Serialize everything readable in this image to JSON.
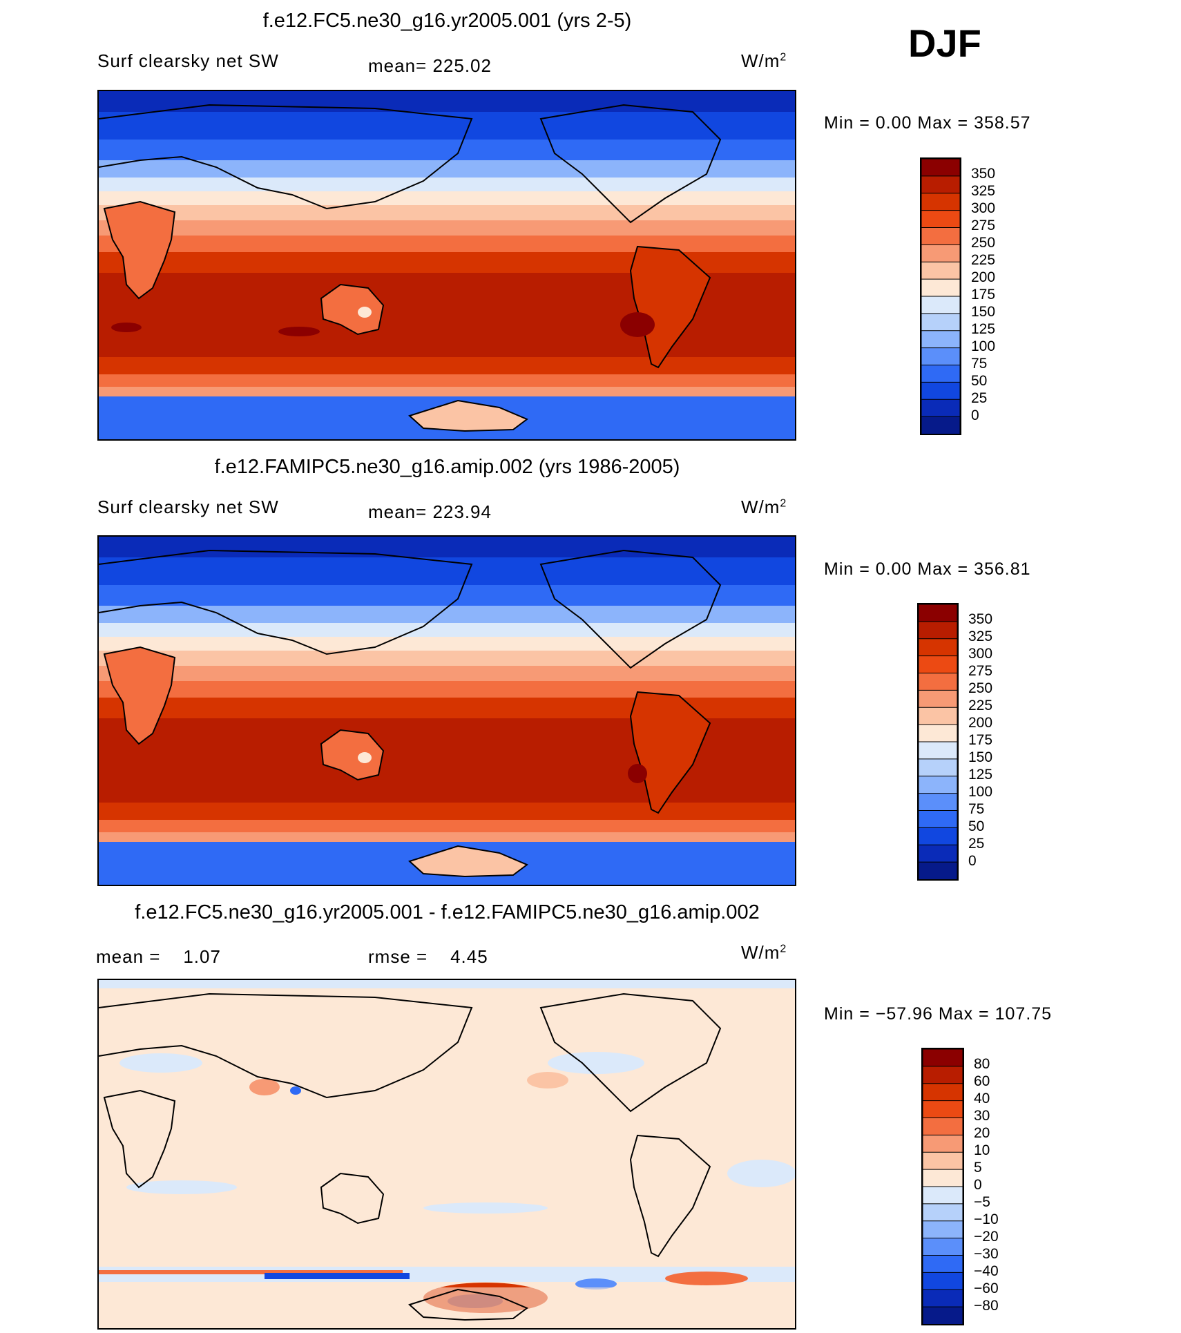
{
  "season": "DJF",
  "units_sup": "2",
  "panels": [
    {
      "title": "f.e12.FC5.ne30_g16.yr2005.001 (yrs 2-5)",
      "left_label": "Surf clearsky net SW",
      "mid_label": "mean= 225.02",
      "units": "W/m",
      "minmax": "Min =    0.00 Max = 358.57",
      "colorbar": {
        "labels": [
          "350",
          "325",
          "300",
          "275",
          "250",
          "225",
          "200",
          "175",
          "150",
          "125",
          "100",
          "75",
          "50",
          "25",
          "0"
        ],
        "colors": [
          "#8b0000",
          "#b81d00",
          "#d63400",
          "#ec4a13",
          "#f36e40",
          "#f79a75",
          "#fbc4a5",
          "#fde8d6",
          "#dbe9fa",
          "#b6d1fa",
          "#8cb4fb",
          "#5b8ffa",
          "#2f6af5",
          "#1147e0",
          "#0a2bb8",
          "#061a8a"
        ]
      },
      "chart_data": {
        "type": "contour-map",
        "field": "Surface clear-sky net shortwave flux",
        "mean": 225.02,
        "min": 0.0,
        "max": 358.57,
        "levels": [
          0,
          25,
          50,
          75,
          100,
          125,
          150,
          175,
          200,
          225,
          250,
          275,
          300,
          325,
          350
        ]
      }
    },
    {
      "title": "f.e12.FAMIPC5.ne30_g16.amip.002 (yrs 1986-2005)",
      "left_label": "Surf clearsky net SW",
      "mid_label": "mean= 223.94",
      "units": "W/m",
      "minmax": "Min =    0.00 Max = 356.81",
      "colorbar": {
        "labels": [
          "350",
          "325",
          "300",
          "275",
          "250",
          "225",
          "200",
          "175",
          "150",
          "125",
          "100",
          "75",
          "50",
          "25",
          "0"
        ],
        "colors": [
          "#8b0000",
          "#b81d00",
          "#d63400",
          "#ec4a13",
          "#f36e40",
          "#f79a75",
          "#fbc4a5",
          "#fde8d6",
          "#dbe9fa",
          "#b6d1fa",
          "#8cb4fb",
          "#5b8ffa",
          "#2f6af5",
          "#1147e0",
          "#0a2bb8",
          "#061a8a"
        ]
      },
      "chart_data": {
        "type": "contour-map",
        "field": "Surface clear-sky net shortwave flux",
        "mean": 223.94,
        "min": 0.0,
        "max": 356.81,
        "levels": [
          0,
          25,
          50,
          75,
          100,
          125,
          150,
          175,
          200,
          225,
          250,
          275,
          300,
          325,
          350
        ]
      }
    },
    {
      "title": "f.e12.FC5.ne30_g16.yr2005.001 - f.e12.FAMIPC5.ne30_g16.amip.002",
      "left_label": "mean =    1.07",
      "mid_label": "rmse =    4.45",
      "units": "W/m",
      "minmax": "Min = −57.96 Max = 107.75",
      "colorbar": {
        "labels": [
          "80",
          "60",
          "40",
          "30",
          "20",
          "10",
          "5",
          "0",
          "−5",
          "−10",
          "−20",
          "−30",
          "−40",
          "−60",
          "−80"
        ],
        "colors": [
          "#8b0000",
          "#b81d00",
          "#d63400",
          "#ec4a13",
          "#f36e40",
          "#f79a75",
          "#fbc4a5",
          "#fde8d6",
          "#dbe9fa",
          "#b6d1fa",
          "#8cb4fb",
          "#5b8ffa",
          "#2f6af5",
          "#1147e0",
          "#0a2bb8",
          "#061a8a"
        ]
      },
      "chart_data": {
        "type": "contour-map",
        "field": "Difference in surface clear-sky net shortwave flux",
        "mean": 1.07,
        "rmse": 4.45,
        "min": -57.96,
        "max": 107.75,
        "levels": [
          -80,
          -60,
          -40,
          -30,
          -20,
          -10,
          -5,
          0,
          5,
          10,
          20,
          30,
          40,
          60,
          80
        ]
      }
    }
  ]
}
